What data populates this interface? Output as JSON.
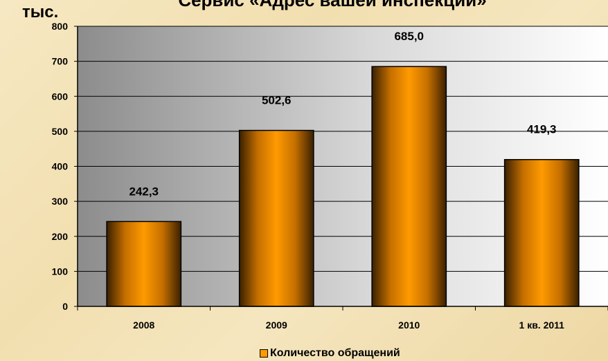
{
  "chart_data": {
    "type": "bar",
    "title": "Сервис «Адрес вашей инспекции»",
    "ylabel": "тыс.",
    "categories": [
      "2008",
      "2009",
      "2010",
      "1 кв. 2011"
    ],
    "series": [
      {
        "name": "Количество обращений",
        "values": [
          242.3,
          502.6,
          685.0,
          419.3
        ],
        "labels": [
          "242,3",
          "502,6",
          "685,0",
          "419,3"
        ]
      }
    ],
    "ylim": [
      0,
      800
    ],
    "yticks": [
      0,
      100,
      200,
      300,
      400,
      500,
      600,
      700,
      800
    ],
    "grid": true,
    "legend": "bottom",
    "colors": {
      "bar": "#ff9a00",
      "bar_dark": "#3a2000",
      "plot_bg_light": "#ffffff",
      "plot_bg_dark": "#8c8c8c"
    }
  }
}
